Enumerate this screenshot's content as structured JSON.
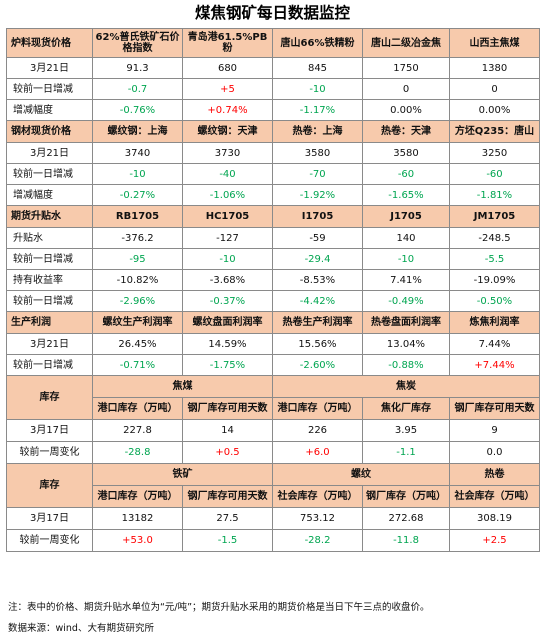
{
  "title": "煤焦钢矿每日数据监控",
  "sec1": {
    "label": "炉料现货价格",
    "cols": [
      "62%普氏铁矿石价格指数",
      "青岛港61.5%PB粉",
      "唐山66%铁精粉",
      "唐山二级冶金焦",
      "山西主焦煤"
    ],
    "date_label": "3月21日",
    "prices": [
      "91.3",
      "680",
      "845",
      "1750",
      "1380"
    ],
    "change_label": "较前一日增减",
    "changes": [
      "-0.7",
      "+5",
      "-10",
      "0",
      "0"
    ],
    "pct_label": "增减幅度",
    "pcts": [
      "-0.76%",
      "+0.74%",
      "-1.17%",
      "0.00%",
      "0.00%"
    ]
  },
  "sec2": {
    "label": "钢材现货价格",
    "cols": [
      "螺纹钢：上海",
      "螺纹钢：天津",
      "热卷：上海",
      "热卷：天津",
      "方坯Q235：唐山"
    ],
    "date_label": "3月21日",
    "prices": [
      "3740",
      "3730",
      "3580",
      "3580",
      "3250"
    ],
    "change_label": "较前一日增减",
    "changes": [
      "-10",
      "-40",
      "-70",
      "-60",
      "-60"
    ],
    "pct_label": "增减幅度",
    "pcts": [
      "-0.27%",
      "-1.06%",
      "-1.92%",
      "-1.65%",
      "-1.81%"
    ]
  },
  "sec3": {
    "label": "期货升贴水",
    "cols": [
      "RB1705",
      "HC1705",
      "I1705",
      "J1705",
      "JM1705"
    ],
    "basis_label": "升贴水",
    "basis": [
      "-376.2",
      "-127",
      "-59",
      "140",
      "-248.5"
    ],
    "change_label": "较前一日增减",
    "basis_changes": [
      "-95",
      "-10",
      "-29.4",
      "-10",
      "-5.5"
    ],
    "carry_label": "持有收益率",
    "carry": [
      "-10.82%",
      "-3.68%",
      "-8.53%",
      "7.41%",
      "-19.09%"
    ],
    "carry_change_label": "较前一日增减",
    "carry_changes": [
      "-2.96%",
      "-0.37%",
      "-4.42%",
      "-0.49%",
      "-0.50%"
    ]
  },
  "sec4": {
    "label": "生产利润",
    "cols": [
      "螺纹生产利润率",
      "螺纹盘面利润率",
      "热卷生产利润率",
      "热卷盘面利润率",
      "炼焦利润率"
    ],
    "date_label": "3月21日",
    "values": [
      "26.45%",
      "14.59%",
      "15.56%",
      "13.04%",
      "7.44%"
    ],
    "change_label": "较前一日增减",
    "changes": [
      "-0.71%",
      "-1.75%",
      "-2.60%",
      "-0.88%",
      "+7.44%"
    ]
  },
  "sec5": {
    "label": "库存",
    "group1": "焦煤",
    "group2": "焦炭",
    "cols": [
      "港口库存（万吨）",
      "钢厂库存可用天数",
      "港口库存（万吨）",
      "焦化厂库存",
      "钢厂库存可用天数"
    ],
    "date_label": "3月17日",
    "values": [
      "227.8",
      "14",
      "226",
      "3.95",
      "9"
    ],
    "change_label": "较前一周变化",
    "changes": [
      "-28.8",
      "+0.5",
      "+6.0",
      "-1.1",
      "0.0"
    ]
  },
  "sec6": {
    "label": "库存",
    "group1": "铁矿",
    "group2": "螺纹",
    "group3": "热卷",
    "cols": [
      "港口库存（万吨）",
      "钢厂库存可用天数",
      "社会库存（万吨）",
      "钢厂库存（万吨）",
      "社会库存（万吨）"
    ],
    "date_label": "3月17日",
    "values": [
      "13182",
      "27.5",
      "753.12",
      "272.68",
      "308.19"
    ],
    "change_label": "较前一周变化",
    "changes": [
      "+53.0",
      "-1.5",
      "-28.2",
      "-11.8",
      "+2.5"
    ]
  },
  "footnote": "注：表中的价格、期货升贴水单位为“元/吨”；期货升贴水采用的期货价格是当日下午三点的收盘价。",
  "source": "数据来源：wind、大有期货研究所",
  "colors": {
    "header_bg": "#f7caac",
    "up": "#ff0000",
    "down": "#00a550"
  }
}
